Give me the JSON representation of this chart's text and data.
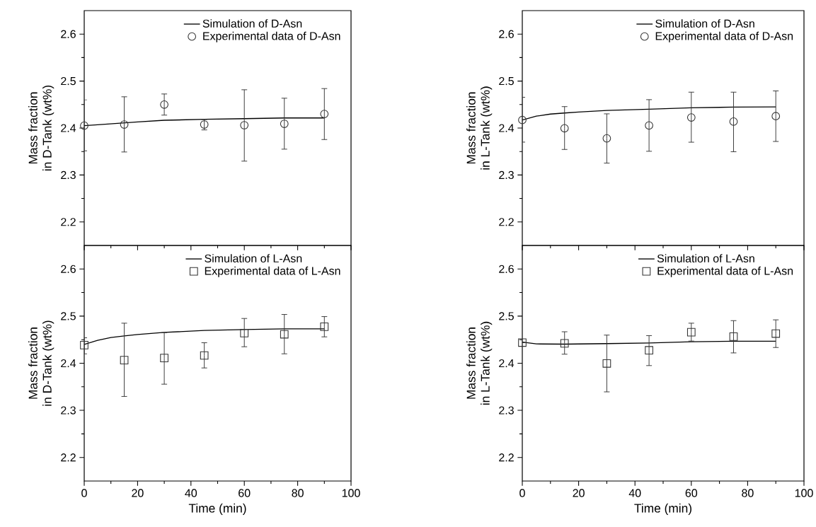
{
  "chart_data": [
    {
      "type": "scatter",
      "ylabel": "Mass fraction\nin D-Tank (wt%)",
      "xlim": [
        0,
        100
      ],
      "ylim": [
        2.15,
        2.65
      ],
      "xticks": [
        0,
        20,
        40,
        60,
        80,
        100
      ],
      "yticks": [
        2.2,
        2.3,
        2.4,
        2.5,
        2.6
      ],
      "tick_labels": "y",
      "legend": "top right",
      "series": [
        {
          "name": "Simulation of D-Asn",
          "type": "line",
          "marker": "none",
          "line_style": "solid",
          "color": "#000000",
          "x": [
            0,
            5,
            10,
            15,
            20,
            30,
            45,
            60,
            75,
            90
          ],
          "values": [
            2.405,
            2.407,
            2.409,
            2.411,
            2.413,
            2.4165,
            2.4185,
            2.42,
            2.4215,
            2.4215
          ]
        },
        {
          "name": "Experimental data of D-Asn",
          "marker": "circle",
          "color": "#333333",
          "x": [
            0,
            15,
            30,
            45,
            60,
            75,
            90
          ],
          "values": [
            2.405,
            2.4075,
            2.45,
            2.4075,
            2.406,
            2.409,
            2.43
          ],
          "errors": [
            [
              2.3515,
              2.46
            ],
            [
              2.349,
              2.4665
            ],
            [
              2.4275,
              2.4725
            ],
            [
              2.396,
              2.418
            ],
            [
              2.3295,
              2.4815
            ],
            [
              2.355,
              2.4635
            ],
            [
              2.3755,
              2.484
            ]
          ]
        }
      ]
    },
    {
      "type": "scatter",
      "ylabel": "Mass fraction\nin L-Tank (wt%)",
      "xlim": [
        0,
        100
      ],
      "ylim": [
        2.15,
        2.65
      ],
      "xticks": [
        0,
        20,
        40,
        60,
        80,
        100
      ],
      "yticks": [
        2.2,
        2.3,
        2.4,
        2.5,
        2.6
      ],
      "tick_labels": "y",
      "legend": "top right",
      "series": [
        {
          "name": "Simulation of D-Asn",
          "type": "line",
          "marker": "none",
          "line_style": "solid",
          "color": "#000000",
          "x": [
            0,
            5,
            10,
            15,
            20,
            30,
            45,
            60,
            75,
            90
          ],
          "values": [
            2.417,
            2.4253,
            2.4297,
            2.432,
            2.434,
            2.4374,
            2.44,
            2.443,
            2.4445,
            2.445
          ]
        },
        {
          "name": "Experimental data of D-Asn",
          "marker": "circle",
          "color": "#333333",
          "x": [
            0,
            15,
            30,
            45,
            60,
            75,
            90
          ],
          "values": [
            2.417,
            2.3995,
            2.378,
            2.4055,
            2.4225,
            2.4137,
            2.4253
          ],
          "errors": [
            [
              2.37,
              2.4654
            ],
            [
              2.3544,
              2.4456
            ],
            [
              2.3253,
              2.4302
            ],
            [
              2.3505,
              2.4604
            ],
            [
              2.3698,
              2.4764
            ],
            [
              2.3495,
              2.4764
            ],
            [
              2.3714,
              2.479
            ]
          ]
        }
      ]
    },
    {
      "type": "scatter",
      "ylabel": "Mass fraction\nin D-Tank (wt%)",
      "xlabel": "Time (min)",
      "xlim": [
        0,
        100
      ],
      "ylim": [
        2.15,
        2.65
      ],
      "xticks": [
        0,
        20,
        40,
        60,
        80,
        100
      ],
      "yticks": [
        2.2,
        2.3,
        2.4,
        2.5,
        2.6
      ],
      "legend": "top right",
      "series": [
        {
          "name": "Simulation of L-Asn",
          "type": "line",
          "marker": "none",
          "line_style": "solid",
          "color": "#000000",
          "x": [
            0,
            5,
            10,
            15,
            20,
            30,
            45,
            60,
            75,
            90
          ],
          "values": [
            2.44,
            2.4485,
            2.4545,
            2.458,
            2.461,
            2.4655,
            2.4695,
            2.4715,
            2.473,
            2.473
          ]
        },
        {
          "name": "Experimental data of L-Asn",
          "marker": "square",
          "color": "#333333",
          "x": [
            0,
            15,
            30,
            45,
            60,
            75,
            90
          ],
          "values": [
            2.4385,
            2.4065,
            2.411,
            2.4165,
            2.464,
            2.4615,
            2.4775
          ],
          "errors": [
            [
              2.42,
              2.454
            ],
            [
              2.3295,
              2.485
            ],
            [
              2.3555,
              2.465
            ],
            [
              2.39,
              2.4435
            ],
            [
              2.435,
              2.495
            ],
            [
              2.42,
              2.5035
            ],
            [
              2.456,
              2.499
            ]
          ]
        }
      ]
    },
    {
      "type": "scatter",
      "ylabel": "Mass fraction\nin L-Tank (wt%)",
      "xlabel": "Time (min)",
      "xlim": [
        0,
        100
      ],
      "ylim": [
        2.15,
        2.65
      ],
      "xticks": [
        0,
        20,
        40,
        60,
        80,
        100
      ],
      "yticks": [
        2.2,
        2.3,
        2.4,
        2.5,
        2.6
      ],
      "legend": "top right",
      "series": [
        {
          "name": "Simulation of L-Asn",
          "type": "line",
          "marker": "none",
          "line_style": "solid",
          "color": "#000000",
          "x": [
            0,
            5,
            15,
            30,
            45,
            60,
            75,
            90
          ],
          "values": [
            2.4449,
            2.441,
            2.4405,
            2.4416,
            2.443,
            2.4455,
            2.4466,
            2.4466
          ]
        },
        {
          "name": "Experimental data of L-Asn",
          "marker": "square",
          "color": "#333333",
          "x": [
            0,
            15,
            30,
            45,
            60,
            75,
            90
          ],
          "values": [
            2.4438,
            2.4422,
            2.3995,
            2.4274,
            2.4658,
            2.4564,
            2.463
          ],
          "errors": [
            null,
            [
              2.4192,
              2.4668
            ],
            [
              2.3392,
              2.4597
            ],
            [
              2.395,
              2.4586
            ],
            [
              2.447,
              2.485
            ],
            [
              2.4219,
              2.4904
            ],
            [
              2.4334,
              2.4921
            ]
          ]
        }
      ]
    }
  ]
}
